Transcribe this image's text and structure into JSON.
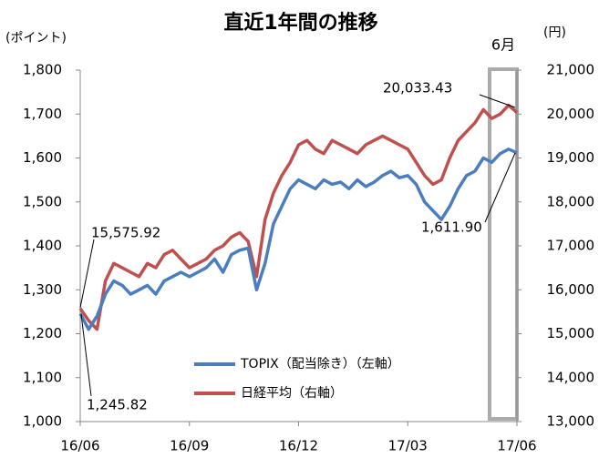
{
  "chart_data": {
    "type": "line",
    "title": "直近1年間の推移",
    "y_label": "(ポイント)",
    "y2_label": "(円)",
    "categories": [
      "16/06",
      null,
      null,
      null,
      null,
      null,
      null,
      null,
      null,
      null,
      null,
      null,
      null,
      "16/09",
      null,
      null,
      null,
      null,
      null,
      null,
      null,
      null,
      null,
      null,
      null,
      null,
      "16/12",
      null,
      null,
      null,
      null,
      null,
      null,
      null,
      null,
      null,
      null,
      null,
      null,
      "17/03",
      null,
      null,
      null,
      null,
      null,
      null,
      null,
      null,
      null,
      null,
      null,
      null,
      "17/06"
    ],
    "series": [
      {
        "name": "TOPIX（配当除き）（左軸）",
        "color": "#4a7ebf",
        "axis": "y",
        "values": [
          1245.82,
          1210,
          1240,
          1290,
          1320,
          1310,
          1290,
          1300,
          1310,
          1290,
          1320,
          1330,
          1340,
          1330,
          1340,
          1350,
          1370,
          1340,
          1380,
          1390,
          1395,
          1300,
          1360,
          1450,
          1490,
          1530,
          1550,
          1540,
          1530,
          1550,
          1540,
          1545,
          1530,
          1550,
          1535,
          1545,
          1560,
          1570,
          1555,
          1560,
          1540,
          1500,
          1480,
          1460,
          1490,
          1530,
          1560,
          1570,
          1600,
          1590,
          1610,
          1620,
          1611.9
        ]
      },
      {
        "name": "日経平均（右軸）",
        "color": "#c0504d",
        "axis": "y2",
        "values": [
          15575.92,
          15300,
          15100,
          16200,
          16600,
          16500,
          16400,
          16300,
          16600,
          16500,
          16800,
          16900,
          16700,
          16500,
          16600,
          16700,
          16900,
          17000,
          17200,
          17300,
          17100,
          16300,
          17600,
          18200,
          18600,
          18900,
          19300,
          19400,
          19200,
          19100,
          19400,
          19300,
          19200,
          19100,
          19300,
          19400,
          19500,
          19400,
          19300,
          19200,
          18900,
          18600,
          18400,
          18500,
          19000,
          19400,
          19600,
          19800,
          20100,
          19900,
          20000,
          20200,
          20033.43
        ]
      }
    ],
    "ylim": [
      1000,
      1800
    ],
    "yticks": [
      {
        "value": 1000,
        "label": "1,000"
      },
      {
        "value": 1100,
        "label": "1,100"
      },
      {
        "value": 1200,
        "label": "1,200"
      },
      {
        "value": 1300,
        "label": "1,300"
      },
      {
        "value": 1400,
        "label": "1,400"
      },
      {
        "value": 1500,
        "label": "1,500"
      },
      {
        "value": 1600,
        "label": "1,600"
      },
      {
        "value": 1700,
        "label": "1,700"
      },
      {
        "value": 1800,
        "label": "1,800"
      }
    ],
    "y2lim": [
      13000,
      21000
    ],
    "y2ticks": [
      {
        "value": 13000,
        "label": "13,000"
      },
      {
        "value": 14000,
        "label": "14,000"
      },
      {
        "value": 15000,
        "label": "15,000"
      },
      {
        "value": 16000,
        "label": "16,000"
      },
      {
        "value": 17000,
        "label": "17,000"
      },
      {
        "value": 18000,
        "label": "18,000"
      },
      {
        "value": 19000,
        "label": "19,000"
      },
      {
        "value": 20000,
        "label": "20,000"
      },
      {
        "value": 21000,
        "label": "21,000"
      }
    ],
    "annotations": [
      "15,575.92",
      "1,245.82",
      "20,033.43",
      "1,611.90",
      "6月"
    ],
    "grid": false
  }
}
